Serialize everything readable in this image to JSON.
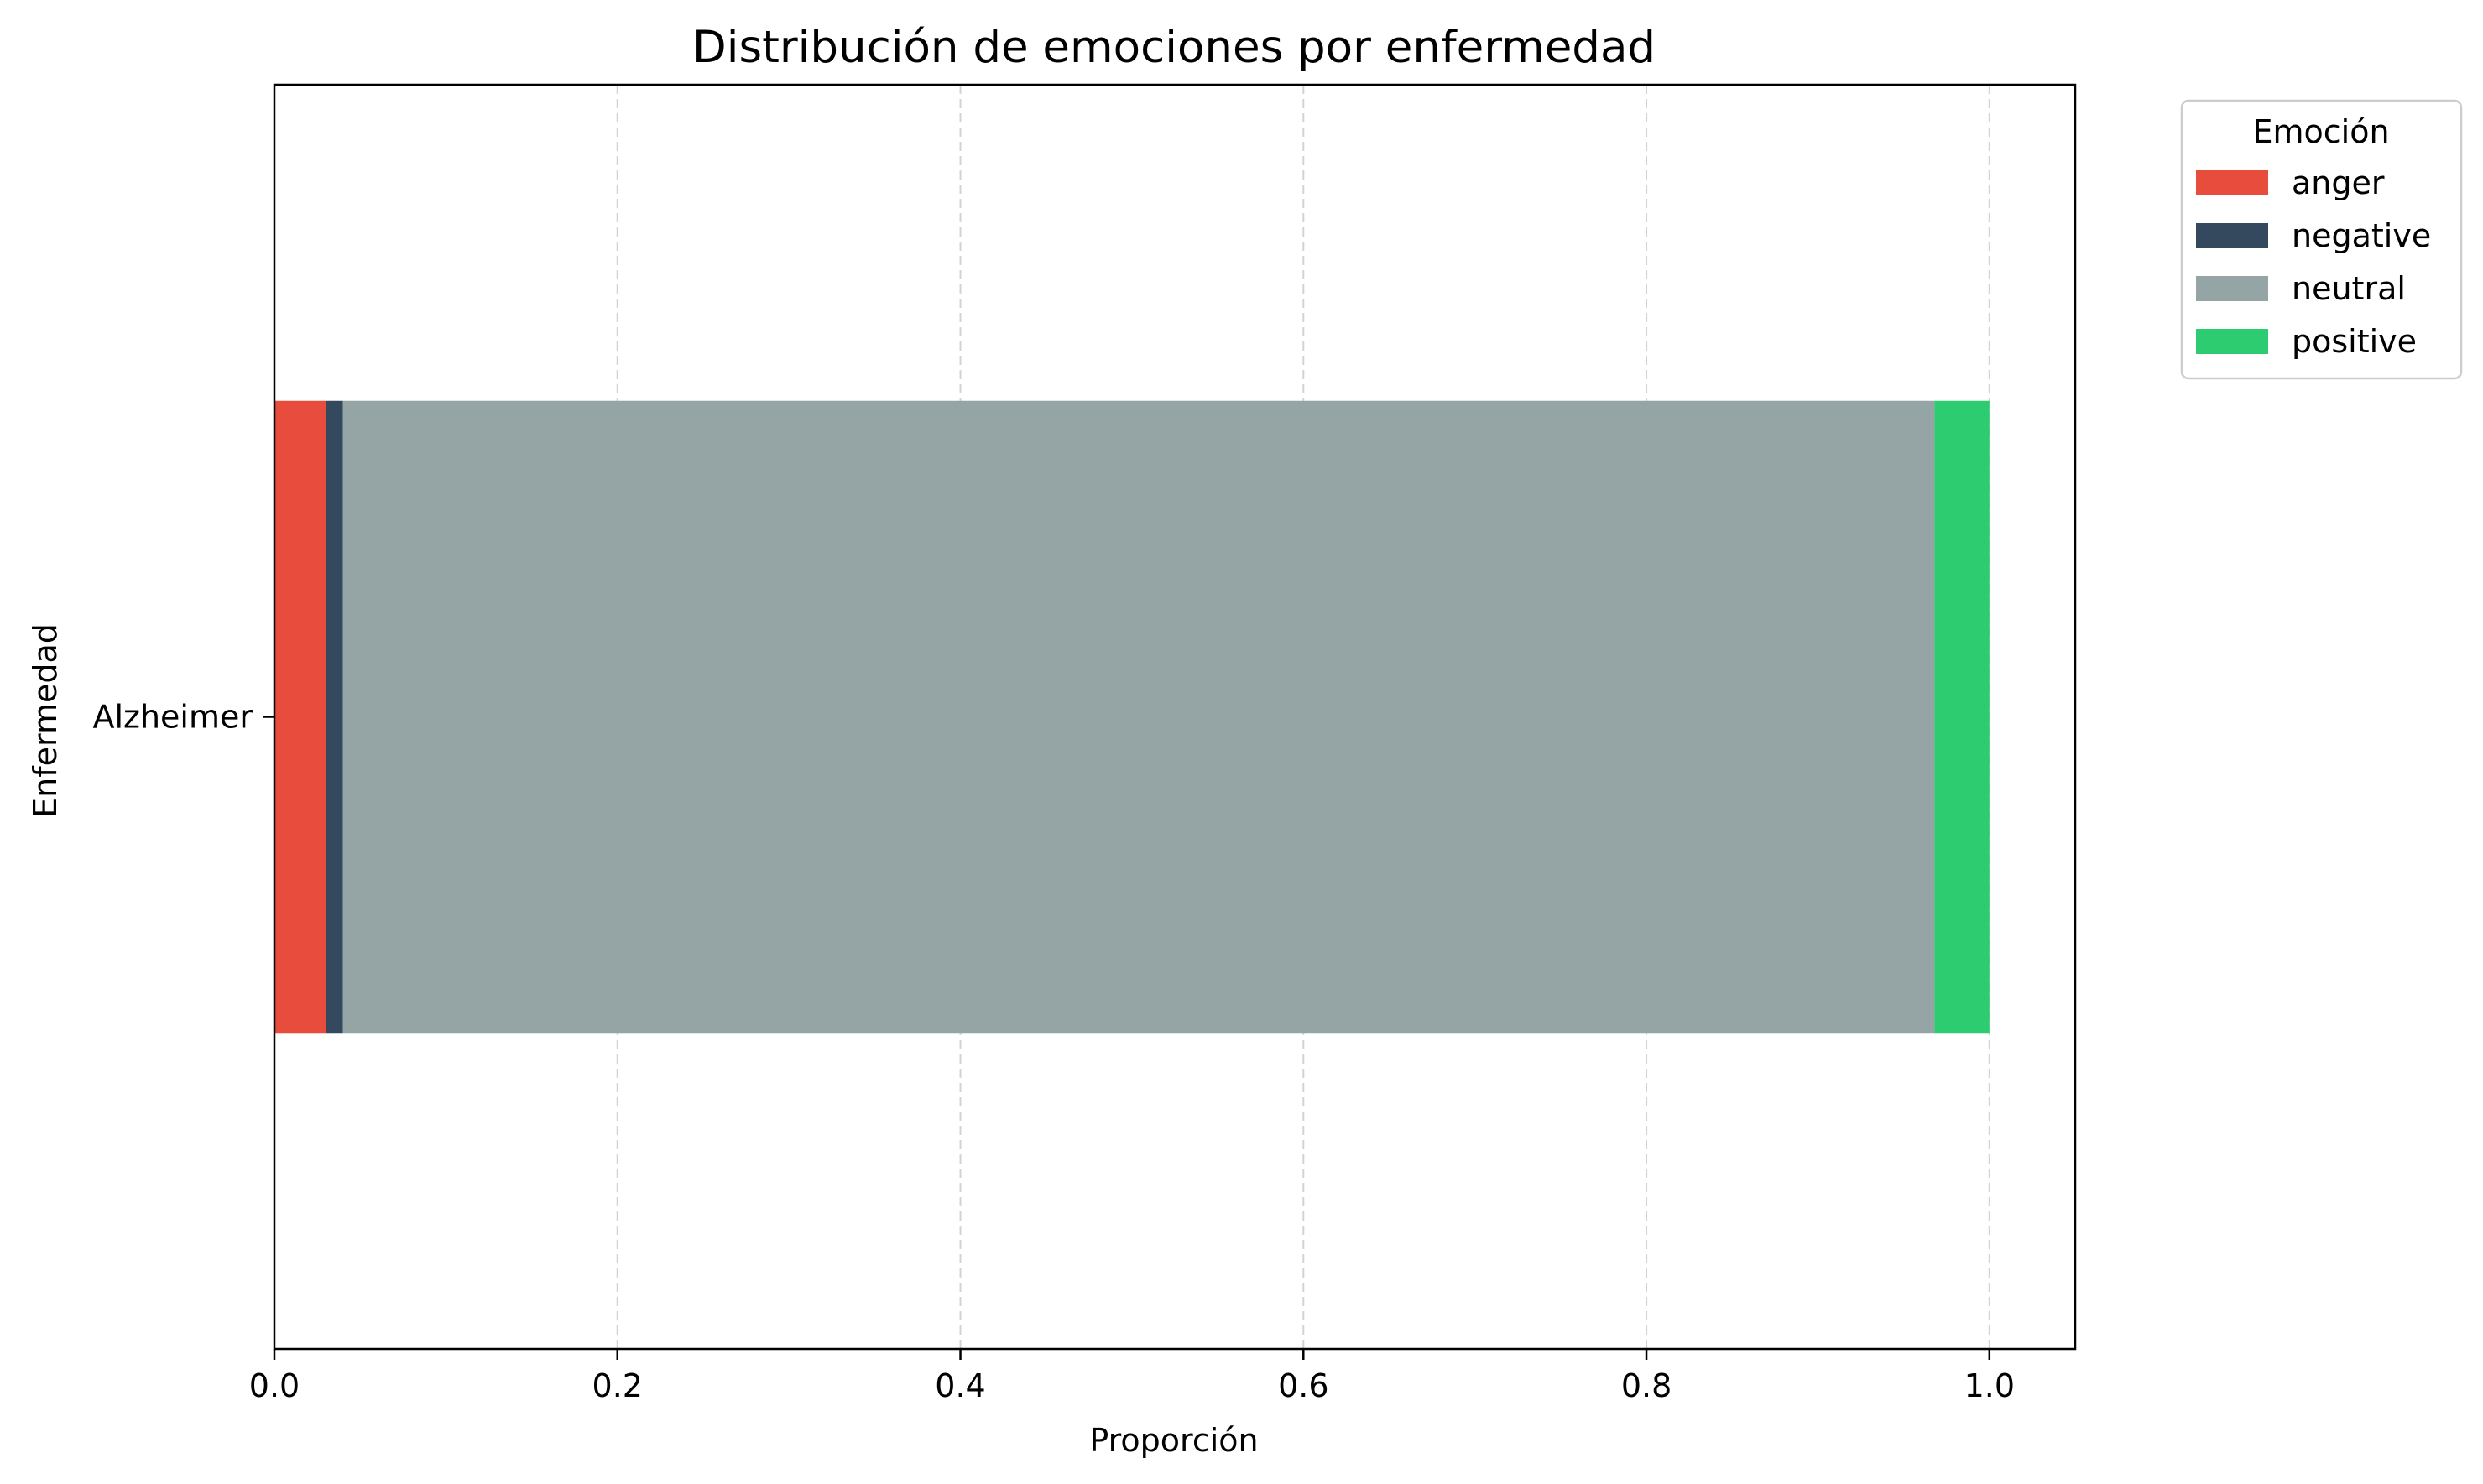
{
  "chart_data": {
    "type": "bar",
    "orientation": "horizontal",
    "stacked": true,
    "title": "Distribución de emociones por enfermedad",
    "xlabel": "Proporción",
    "ylabel": "Enfermedad",
    "categories": [
      "Alzheimer"
    ],
    "xlim": [
      0.0,
      1.05
    ],
    "xticks": [
      0.0,
      0.2,
      0.4,
      0.6,
      0.8,
      1.0
    ],
    "xtick_labels": [
      "0.0",
      "0.2",
      "0.4",
      "0.6",
      "0.8",
      "1.0"
    ],
    "grid": "x-dashed",
    "legend": {
      "title": "Emoción",
      "placement": "outside-top-right"
    },
    "series": [
      {
        "name": "anger",
        "color": "#e74c3c",
        "values": [
          0.03
        ]
      },
      {
        "name": "negative",
        "color": "#34495e",
        "values": [
          0.01
        ]
      },
      {
        "name": "neutral",
        "color": "#95a5a6",
        "values": [
          0.928
        ]
      },
      {
        "name": "positive",
        "color": "#2ecc71",
        "values": [
          0.032
        ]
      }
    ]
  }
}
